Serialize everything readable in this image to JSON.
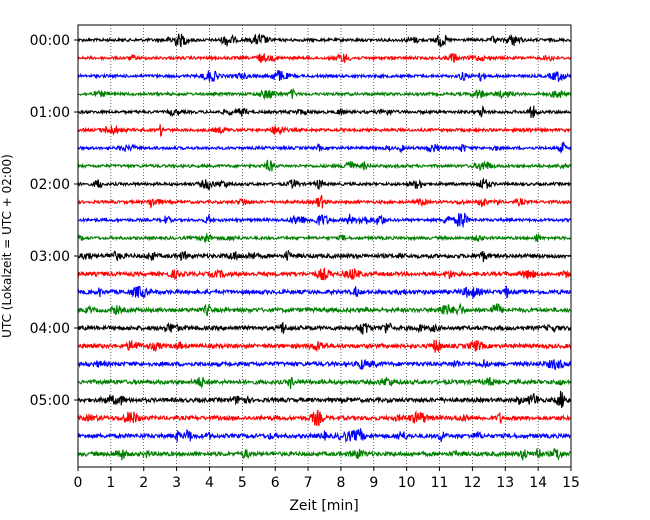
{
  "chart_data": {
    "type": "line",
    "title": "",
    "xlabel": "Zeit  [min]",
    "ylabel": "UTC (Lokalzeit = UTC + 02:00)",
    "xlim": [
      0,
      15
    ],
    "x_ticks": [
      "0",
      "1",
      "2",
      "3",
      "4",
      "5",
      "6",
      "7",
      "8",
      "9",
      "10",
      "11",
      "12",
      "13",
      "14",
      "15"
    ],
    "y_ticks": [
      "00:00",
      "01:00",
      "02:00",
      "03:00",
      "04:00",
      "05:00"
    ],
    "grid": "vertical dotted at each minute",
    "legend": "none",
    "trace_minutes": 15,
    "trace_colors": [
      "#000000",
      "#ff0000",
      "#0000ff",
      "#008000"
    ],
    "series": [
      {
        "start": "00:00",
        "color": "#000000"
      },
      {
        "start": "00:15",
        "color": "#ff0000"
      },
      {
        "start": "00:30",
        "color": "#0000ff"
      },
      {
        "start": "00:45",
        "color": "#008000"
      },
      {
        "start": "01:00",
        "color": "#000000"
      },
      {
        "start": "01:15",
        "color": "#ff0000"
      },
      {
        "start": "01:30",
        "color": "#0000ff"
      },
      {
        "start": "01:45",
        "color": "#008000"
      },
      {
        "start": "02:00",
        "color": "#000000"
      },
      {
        "start": "02:15",
        "color": "#ff0000"
      },
      {
        "start": "02:30",
        "color": "#0000ff"
      },
      {
        "start": "02:45",
        "color": "#008000"
      },
      {
        "start": "03:00",
        "color": "#000000"
      },
      {
        "start": "03:15",
        "color": "#ff0000"
      },
      {
        "start": "03:30",
        "color": "#0000ff"
      },
      {
        "start": "03:45",
        "color": "#008000"
      },
      {
        "start": "04:00",
        "color": "#000000"
      },
      {
        "start": "04:15",
        "color": "#ff0000"
      },
      {
        "start": "04:30",
        "color": "#0000ff"
      },
      {
        "start": "04:45",
        "color": "#008000"
      },
      {
        "start": "05:00",
        "color": "#000000"
      },
      {
        "start": "05:15",
        "color": "#ff0000"
      },
      {
        "start": "05:30",
        "color": "#0000ff"
      },
      {
        "start": "05:45",
        "color": "#008000"
      }
    ]
  }
}
